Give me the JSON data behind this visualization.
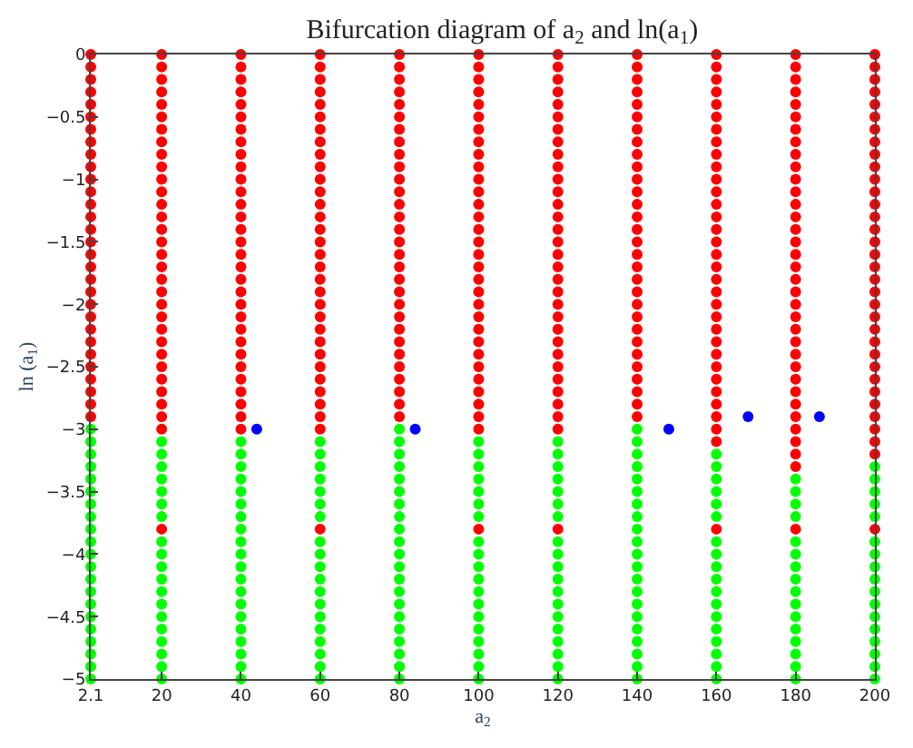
{
  "chart_data": {
    "type": "scatter",
    "title": "Bifurcation diagram of a$_{2}$ and ln(a$_{1}$)",
    "xlabel": "a$_{2}$",
    "ylabel": "ln (a$_{1}$)",
    "xlim": [
      2.1,
      200
    ],
    "xticks": [
      2.1,
      20,
      40,
      60,
      80,
      100,
      120,
      140,
      160,
      180,
      200
    ],
    "ylim": [
      -5,
      0
    ],
    "yticks": [
      {
        "value": -5,
        "label": "−5"
      },
      {
        "value": -4.5,
        "label": "−4.5"
      },
      {
        "value": -4,
        "label": "−4"
      },
      {
        "value": -3.5,
        "label": "−3.5"
      },
      {
        "value": -3,
        "label": "−3"
      },
      {
        "value": -2.5,
        "label": "−2.5"
      },
      {
        "value": -2,
        "label": "−2"
      },
      {
        "value": -1.5,
        "label": "−1.5"
      },
      {
        "value": -1,
        "label": "−1"
      },
      {
        "value": -0.5,
        "label": "−0.5"
      },
      0
    ],
    "marker": "circle",
    "series": [
      {
        "color": "#ff0000",
        "x": [
          2.1,
          20,
          40,
          60,
          80,
          100,
          120,
          140,
          160,
          180,
          200,
          2.1,
          20,
          40,
          60,
          80,
          100,
          120,
          140,
          160,
          180,
          200,
          2.1,
          20,
          40,
          60,
          80,
          100,
          120,
          140,
          160,
          180,
          200,
          2.1,
          20,
          40,
          60,
          80,
          100,
          120,
          140,
          160,
          180,
          200,
          2.1,
          20,
          40,
          60,
          80,
          100,
          120,
          140,
          160,
          180,
          200,
          2.1,
          20,
          40,
          60,
          80,
          100,
          120,
          140,
          160,
          180,
          200,
          2.1,
          20,
          40,
          60,
          80,
          100,
          120,
          140,
          160,
          180,
          200,
          2.1,
          20,
          40,
          60,
          80,
          100,
          120,
          140,
          160,
          180,
          200,
          2.1,
          20,
          40,
          60,
          80,
          100,
          120,
          140,
          160,
          180,
          200,
          2.1,
          20,
          40,
          60,
          80,
          100,
          120,
          140,
          160,
          180,
          200,
          2.1,
          20,
          40,
          60,
          80,
          100,
          120,
          140,
          160,
          180,
          200,
          2.1,
          20,
          40,
          60,
          80,
          100,
          120,
          140,
          160,
          180,
          200,
          2.1,
          20,
          40,
          60,
          80,
          100,
          120,
          140,
          160,
          180,
          200,
          2.1,
          20,
          40,
          60,
          80,
          100,
          120,
          140,
          160,
          180,
          200,
          2.1,
          20,
          40,
          60,
          80,
          100,
          120,
          140,
          160,
          180,
          200,
          2.1,
          20,
          40,
          60,
          80,
          100,
          120,
          140,
          160,
          180,
          200,
          2.1,
          20,
          40,
          60,
          80,
          100,
          120,
          140,
          160,
          180,
          200,
          2.1,
          20,
          40,
          60,
          80,
          100,
          120,
          140,
          160,
          180,
          200,
          2.1,
          20,
          40,
          60,
          80,
          100,
          120,
          140,
          160,
          180,
          200,
          2.1,
          20,
          40,
          60,
          80,
          100,
          120,
          140,
          160,
          180,
          200,
          2.1,
          20,
          40,
          60,
          80,
          100,
          120,
          140,
          160,
          180,
          200,
          2.1,
          20,
          40,
          60,
          80,
          100,
          120,
          140,
          160,
          180,
          200,
          2.1,
          20,
          40,
          60,
          80,
          100,
          120,
          140,
          160,
          180,
          200,
          2.1,
          20,
          40,
          60,
          80,
          100,
          120,
          140,
          160,
          180,
          200,
          2.1,
          20,
          40,
          60,
          80,
          100,
          120,
          140,
          160,
          180,
          200,
          2.1,
          20,
          40,
          60,
          80,
          100,
          120,
          140,
          160,
          180,
          200,
          2.1,
          20,
          40,
          60,
          80,
          100,
          120,
          140,
          160,
          180,
          200,
          2.1,
          20,
          40,
          60,
          80,
          100,
          120,
          140,
          160,
          180,
          200,
          2.1,
          20,
          40,
          60,
          80,
          100,
          120,
          140,
          160,
          180,
          200,
          2.1,
          20,
          40,
          60,
          80,
          100,
          120,
          140,
          160,
          180,
          200,
          20,
          40,
          60,
          100,
          120,
          160,
          180,
          200,
          160,
          180,
          200,
          180,
          200,
          180,
          20,
          60,
          100,
          120,
          160,
          180,
          200
        ],
        "values": [
          0,
          0,
          0,
          0,
          0,
          0,
          0,
          0,
          0,
          0,
          0,
          -0.1,
          -0.1,
          -0.1,
          -0.1,
          -0.1,
          -0.1,
          -0.1,
          -0.1,
          -0.1,
          -0.1,
          -0.1,
          -0.2,
          -0.2,
          -0.2,
          -0.2,
          -0.2,
          -0.2,
          -0.2,
          -0.2,
          -0.2,
          -0.2,
          -0.2,
          -0.3,
          -0.3,
          -0.3,
          -0.3,
          -0.3,
          -0.3,
          -0.3,
          -0.3,
          -0.3,
          -0.3,
          -0.3,
          -0.4,
          -0.4,
          -0.4,
          -0.4,
          -0.4,
          -0.4,
          -0.4,
          -0.4,
          -0.4,
          -0.4,
          -0.4,
          -0.5,
          -0.5,
          -0.5,
          -0.5,
          -0.5,
          -0.5,
          -0.5,
          -0.5,
          -0.5,
          -0.5,
          -0.5,
          -0.6,
          -0.6,
          -0.6,
          -0.6,
          -0.6,
          -0.6,
          -0.6,
          -0.6,
          -0.6,
          -0.6,
          -0.6,
          -0.7,
          -0.7,
          -0.7,
          -0.7,
          -0.7,
          -0.7,
          -0.7,
          -0.7,
          -0.7,
          -0.7,
          -0.7,
          -0.8,
          -0.8,
          -0.8,
          -0.8,
          -0.8,
          -0.8,
          -0.8,
          -0.8,
          -0.8,
          -0.8,
          -0.8,
          -0.9,
          -0.9,
          -0.9,
          -0.9,
          -0.9,
          -0.9,
          -0.9,
          -0.9,
          -0.9,
          -0.9,
          -0.9,
          -1,
          -1,
          -1,
          -1,
          -1,
          -1,
          -1,
          -1,
          -1,
          -1,
          -1,
          -1.1,
          -1.1,
          -1.1,
          -1.1,
          -1.1,
          -1.1,
          -1.1,
          -1.1,
          -1.1,
          -1.1,
          -1.1,
          -1.2,
          -1.2,
          -1.2,
          -1.2,
          -1.2,
          -1.2,
          -1.2,
          -1.2,
          -1.2,
          -1.2,
          -1.2,
          -1.3,
          -1.3,
          -1.3,
          -1.3,
          -1.3,
          -1.3,
          -1.3,
          -1.3,
          -1.3,
          -1.3,
          -1.3,
          -1.4,
          -1.4,
          -1.4,
          -1.4,
          -1.4,
          -1.4,
          -1.4,
          -1.4,
          -1.4,
          -1.4,
          -1.4,
          -1.5,
          -1.5,
          -1.5,
          -1.5,
          -1.5,
          -1.5,
          -1.5,
          -1.5,
          -1.5,
          -1.5,
          -1.5,
          -1.6,
          -1.6,
          -1.6,
          -1.6,
          -1.6,
          -1.6,
          -1.6,
          -1.6,
          -1.6,
          -1.6,
          -1.6,
          -1.7,
          -1.7,
          -1.7,
          -1.7,
          -1.7,
          -1.7,
          -1.7,
          -1.7,
          -1.7,
          -1.7,
          -1.7,
          -1.8,
          -1.8,
          -1.8,
          -1.8,
          -1.8,
          -1.8,
          -1.8,
          -1.8,
          -1.8,
          -1.8,
          -1.8,
          -1.9,
          -1.9,
          -1.9,
          -1.9,
          -1.9,
          -1.9,
          -1.9,
          -1.9,
          -1.9,
          -1.9,
          -1.9,
          -2,
          -2,
          -2,
          -2,
          -2,
          -2,
          -2,
          -2,
          -2,
          -2,
          -2,
          -2.1,
          -2.1,
          -2.1,
          -2.1,
          -2.1,
          -2.1,
          -2.1,
          -2.1,
          -2.1,
          -2.1,
          -2.1,
          -2.2,
          -2.2,
          -2.2,
          -2.2,
          -2.2,
          -2.2,
          -2.2,
          -2.2,
          -2.2,
          -2.2,
          -2.2,
          -2.3,
          -2.3,
          -2.3,
          -2.3,
          -2.3,
          -2.3,
          -2.3,
          -2.3,
          -2.3,
          -2.3,
          -2.3,
          -2.4,
          -2.4,
          -2.4,
          -2.4,
          -2.4,
          -2.4,
          -2.4,
          -2.4,
          -2.4,
          -2.4,
          -2.4,
          -2.5,
          -2.5,
          -2.5,
          -2.5,
          -2.5,
          -2.5,
          -2.5,
          -2.5,
          -2.5,
          -2.5,
          -2.5,
          -2.6,
          -2.6,
          -2.6,
          -2.6,
          -2.6,
          -2.6,
          -2.6,
          -2.6,
          -2.6,
          -2.6,
          -2.6,
          -2.7,
          -2.7,
          -2.7,
          -2.7,
          -2.7,
          -2.7,
          -2.7,
          -2.7,
          -2.7,
          -2.7,
          -2.7,
          -2.8,
          -2.8,
          -2.8,
          -2.8,
          -2.8,
          -2.8,
          -2.8,
          -2.8,
          -2.8,
          -2.8,
          -2.8,
          -2.9,
          -2.9,
          -2.9,
          -2.9,
          -2.9,
          -2.9,
          -2.9,
          -2.9,
          -2.9,
          -2.9,
          -2.9,
          -3,
          -3,
          -3,
          -3,
          -3,
          -3,
          -3,
          -3,
          -3.1,
          -3.1,
          -3.1,
          -3.2,
          -3.2,
          -3.3,
          -3.8,
          -3.8,
          -3.8,
          -3.8,
          -3.8,
          -3.8,
          -3.8
        ]
      },
      {
        "color": "#00ff00",
        "x": [
          2.1,
          80,
          140,
          2.1,
          20,
          40,
          60,
          80,
          100,
          120,
          140,
          2.1,
          20,
          40,
          60,
          80,
          100,
          120,
          140,
          160,
          2.1,
          20,
          40,
          60,
          80,
          100,
          120,
          140,
          160,
          200,
          2.1,
          20,
          40,
          60,
          80,
          100,
          120,
          140,
          160,
          180,
          200,
          2.1,
          20,
          40,
          60,
          80,
          100,
          120,
          140,
          160,
          180,
          200,
          2.1,
          20,
          40,
          60,
          80,
          100,
          120,
          140,
          160,
          180,
          200,
          2.1,
          20,
          40,
          60,
          80,
          100,
          120,
          140,
          160,
          180,
          200,
          2.1,
          40,
          80,
          140,
          2.1,
          20,
          40,
          60,
          80,
          100,
          120,
          140,
          160,
          180,
          200,
          2.1,
          20,
          40,
          60,
          80,
          100,
          120,
          140,
          160,
          180,
          200,
          2.1,
          20,
          40,
          60,
          80,
          100,
          120,
          140,
          160,
          180,
          200,
          2.1,
          20,
          40,
          60,
          80,
          100,
          120,
          140,
          160,
          180,
          200,
          2.1,
          20,
          40,
          60,
          80,
          100,
          120,
          140,
          160,
          180,
          200,
          2.1,
          20,
          40,
          60,
          80,
          100,
          120,
          140,
          160,
          180,
          200,
          2.1,
          20,
          40,
          60,
          80,
          100,
          120,
          140,
          160,
          180,
          200,
          2.1,
          20,
          40,
          60,
          80,
          100,
          120,
          140,
          160,
          180,
          200,
          2.1,
          20,
          40,
          60,
          80,
          100,
          120,
          140,
          160,
          180,
          200,
          2.1,
          20,
          40,
          60,
          80,
          100,
          120,
          140,
          160,
          180,
          200,
          2.1,
          20,
          40,
          60,
          80,
          100,
          120,
          140,
          160,
          180,
          200,
          2.1,
          20,
          40,
          60,
          80,
          100,
          120,
          140,
          160,
          180,
          200
        ],
        "values": [
          -3,
          -3,
          -3,
          -3.1,
          -3.1,
          -3.1,
          -3.1,
          -3.1,
          -3.1,
          -3.1,
          -3.1,
          -3.2,
          -3.2,
          -3.2,
          -3.2,
          -3.2,
          -3.2,
          -3.2,
          -3.2,
          -3.2,
          -3.3,
          -3.3,
          -3.3,
          -3.3,
          -3.3,
          -3.3,
          -3.3,
          -3.3,
          -3.3,
          -3.3,
          -3.4,
          -3.4,
          -3.4,
          -3.4,
          -3.4,
          -3.4,
          -3.4,
          -3.4,
          -3.4,
          -3.4,
          -3.4,
          -3.5,
          -3.5,
          -3.5,
          -3.5,
          -3.5,
          -3.5,
          -3.5,
          -3.5,
          -3.5,
          -3.5,
          -3.5,
          -3.6,
          -3.6,
          -3.6,
          -3.6,
          -3.6,
          -3.6,
          -3.6,
          -3.6,
          -3.6,
          -3.6,
          -3.6,
          -3.7,
          -3.7,
          -3.7,
          -3.7,
          -3.7,
          -3.7,
          -3.7,
          -3.7,
          -3.7,
          -3.7,
          -3.7,
          -3.8,
          -3.8,
          -3.8,
          -3.8,
          -3.9,
          -3.9,
          -3.9,
          -3.9,
          -3.9,
          -3.9,
          -3.9,
          -3.9,
          -3.9,
          -3.9,
          -3.9,
          -4,
          -4,
          -4,
          -4,
          -4,
          -4,
          -4,
          -4,
          -4,
          -4,
          -4,
          -4.1,
          -4.1,
          -4.1,
          -4.1,
          -4.1,
          -4.1,
          -4.1,
          -4.1,
          -4.1,
          -4.1,
          -4.1,
          -4.2,
          -4.2,
          -4.2,
          -4.2,
          -4.2,
          -4.2,
          -4.2,
          -4.2,
          -4.2,
          -4.2,
          -4.2,
          -4.3,
          -4.3,
          -4.3,
          -4.3,
          -4.3,
          -4.3,
          -4.3,
          -4.3,
          -4.3,
          -4.3,
          -4.3,
          -4.4,
          -4.4,
          -4.4,
          -4.4,
          -4.4,
          -4.4,
          -4.4,
          -4.4,
          -4.4,
          -4.4,
          -4.4,
          -4.5,
          -4.5,
          -4.5,
          -4.5,
          -4.5,
          -4.5,
          -4.5,
          -4.5,
          -4.5,
          -4.5,
          -4.5,
          -4.6,
          -4.6,
          -4.6,
          -4.6,
          -4.6,
          -4.6,
          -4.6,
          -4.6,
          -4.6,
          -4.6,
          -4.6,
          -4.7,
          -4.7,
          -4.7,
          -4.7,
          -4.7,
          -4.7,
          -4.7,
          -4.7,
          -4.7,
          -4.7,
          -4.7,
          -4.8,
          -4.8,
          -4.8,
          -4.8,
          -4.8,
          -4.8,
          -4.8,
          -4.8,
          -4.8,
          -4.8,
          -4.8,
          -4.9,
          -4.9,
          -4.9,
          -4.9,
          -4.9,
          -4.9,
          -4.9,
          -4.9,
          -4.9,
          -4.9,
          -4.9,
          -5,
          -5,
          -5,
          -5,
          -5,
          -5,
          -5,
          -5,
          -5,
          -5,
          -5
        ]
      },
      {
        "color": "#0000ff",
        "x": [
          44,
          84,
          148,
          168,
          186
        ],
        "values": [
          -3,
          -3,
          -3,
          -2.9,
          -2.9
        ]
      }
    ]
  }
}
